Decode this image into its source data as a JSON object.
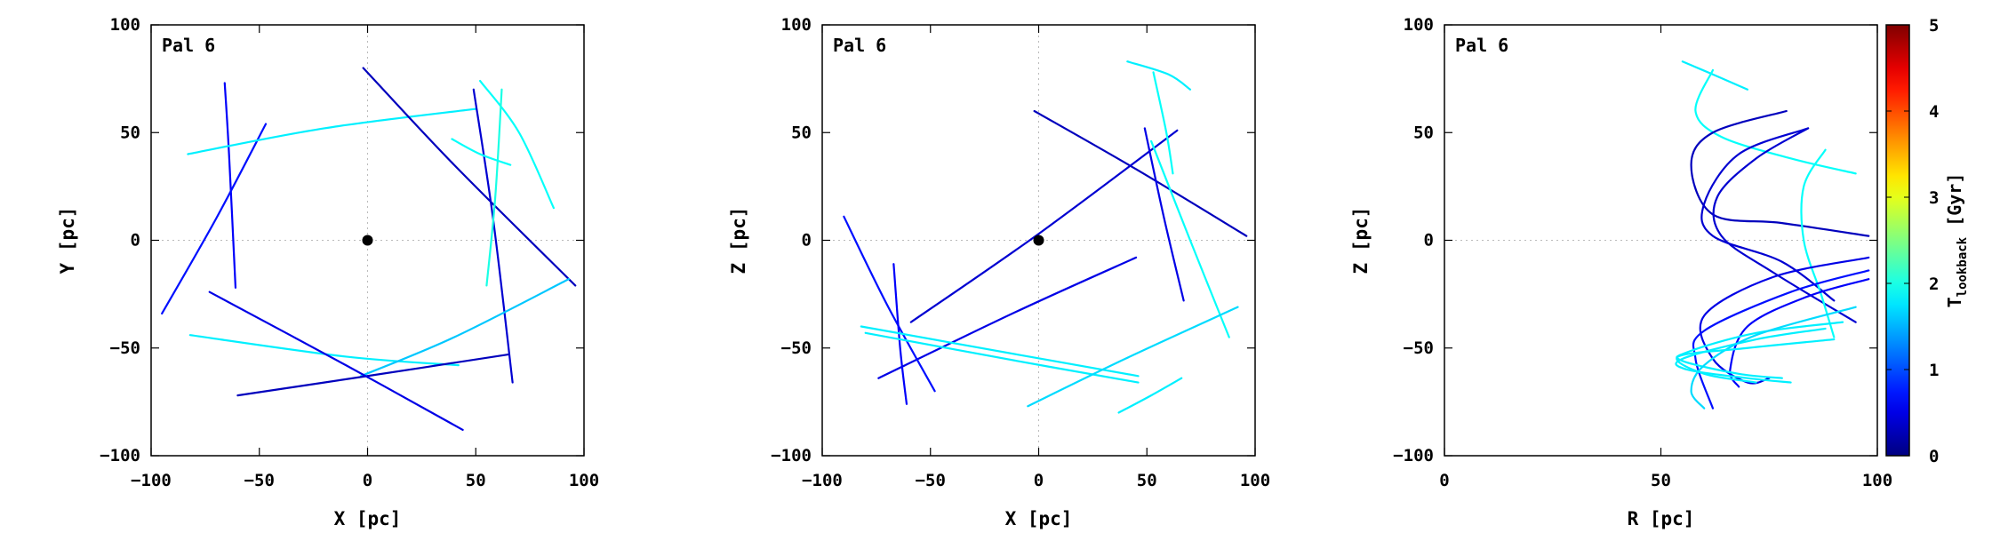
{
  "chart_data": [
    {
      "type": "line",
      "panel_label": "Pal 6",
      "xlabel": "X [pc]",
      "ylabel": "Y [pc]",
      "xlim": [
        -100,
        100
      ],
      "ylim": [
        -100,
        100
      ],
      "xticks": [
        -100,
        -50,
        0,
        50,
        100
      ],
      "yticks": [
        -100,
        -50,
        0,
        50,
        100
      ],
      "grid": true,
      "center_marker": {
        "x": 0,
        "y": 0
      },
      "series": [
        {
          "t": 0.6,
          "points": [
            [
              -66,
              73
            ],
            [
              -64,
              40
            ],
            [
              -61,
              -22
            ]
          ]
        },
        {
          "t": 0.7,
          "points": [
            [
              -47,
              54
            ],
            [
              -70,
              10
            ],
            [
              -95,
              -34
            ]
          ]
        },
        {
          "t": 1.8,
          "points": [
            [
              -83,
              40
            ],
            [
              -20,
              52
            ],
            [
              50,
              61
            ]
          ]
        },
        {
          "t": 0.3,
          "points": [
            [
              -2,
              80
            ],
            [
              40,
              35
            ],
            [
              96,
              -21
            ]
          ]
        },
        {
          "t": 0.4,
          "points": [
            [
              49,
              70
            ],
            [
              58,
              10
            ],
            [
              67,
              -66
            ]
          ]
        },
        {
          "t": 1.9,
          "points": [
            [
              52,
              74
            ],
            [
              70,
              50
            ],
            [
              86,
              15
            ]
          ]
        },
        {
          "t": 2.0,
          "points": [
            [
              62,
              70
            ],
            [
              59,
              20
            ],
            [
              55,
              -21
            ]
          ]
        },
        {
          "t": 1.9,
          "points": [
            [
              39,
              47
            ],
            [
              52,
              40
            ],
            [
              66,
              35
            ]
          ]
        },
        {
          "t": 1.8,
          "points": [
            [
              -82,
              -44
            ],
            [
              -10,
              -54
            ],
            [
              42,
              -58
            ]
          ]
        },
        {
          "t": 1.6,
          "points": [
            [
              -3,
              -63
            ],
            [
              40,
              -45
            ],
            [
              93,
              -18
            ]
          ]
        },
        {
          "t": 0.3,
          "points": [
            [
              -60,
              -72
            ],
            [
              0,
              -63
            ],
            [
              65,
              -53
            ]
          ]
        },
        {
          "t": 0.5,
          "points": [
            [
              -73,
              -24
            ],
            [
              -10,
              -58
            ],
            [
              44,
              -88
            ]
          ]
        }
      ]
    },
    {
      "type": "line",
      "panel_label": "Pal 6",
      "xlabel": "X [pc]",
      "ylabel": "Z [pc]",
      "xlim": [
        -100,
        100
      ],
      "ylim": [
        -100,
        100
      ],
      "xticks": [
        -100,
        -50,
        0,
        50,
        100
      ],
      "yticks": [
        -100,
        -50,
        0,
        50,
        100
      ],
      "grid": true,
      "center_marker": {
        "x": 0,
        "y": 0
      },
      "series": [
        {
          "t": 0.3,
          "points": [
            [
              -2,
              60
            ],
            [
              45,
              33
            ],
            [
              96,
              2
            ]
          ]
        },
        {
          "t": 0.4,
          "points": [
            [
              -59,
              -38
            ],
            [
              0,
              3
            ],
            [
              64,
              51
            ]
          ]
        },
        {
          "t": 0.5,
          "points": [
            [
              -74,
              -64
            ],
            [
              -10,
              -33
            ],
            [
              45,
              -8
            ]
          ]
        },
        {
          "t": 0.7,
          "points": [
            [
              -90,
              11
            ],
            [
              -70,
              -30
            ],
            [
              -48,
              -70
            ]
          ]
        },
        {
          "t": 0.6,
          "points": [
            [
              -67,
              -11
            ],
            [
              -64,
              -50
            ],
            [
              -61,
              -76
            ]
          ]
        },
        {
          "t": 0.5,
          "points": [
            [
              49,
              52
            ],
            [
              58,
              10
            ],
            [
              67,
              -28
            ]
          ]
        },
        {
          "t": 1.9,
          "points": [
            [
              53,
              78
            ],
            [
              59,
              50
            ],
            [
              62,
              31
            ]
          ]
        },
        {
          "t": 1.8,
          "points": [
            [
              41,
              83
            ],
            [
              60,
              77
            ],
            [
              70,
              70
            ]
          ]
        },
        {
          "t": 1.9,
          "points": [
            [
              52,
              46
            ],
            [
              70,
              0
            ],
            [
              88,
              -45
            ]
          ]
        },
        {
          "t": 1.8,
          "points": [
            [
              -82,
              -40
            ],
            [
              -10,
              -53
            ],
            [
              46,
              -63
            ]
          ]
        },
        {
          "t": 1.8,
          "points": [
            [
              -80,
              -43
            ],
            [
              -10,
              -56
            ],
            [
              46,
              -66
            ]
          ]
        },
        {
          "t": 1.7,
          "points": [
            [
              -5,
              -77
            ],
            [
              40,
              -55
            ],
            [
              92,
              -31
            ]
          ]
        },
        {
          "t": 1.8,
          "points": [
            [
              37,
              -80
            ],
            [
              52,
              -72
            ],
            [
              66,
              -64
            ]
          ]
        }
      ]
    },
    {
      "type": "line",
      "panel_label": "Pal 6",
      "xlabel": "R [pc]",
      "ylabel": "Z [pc]",
      "xlim": [
        0,
        100
      ],
      "ylim": [
        -100,
        100
      ],
      "xticks": [
        0,
        50,
        100
      ],
      "yticks": [
        -100,
        -50,
        0,
        50,
        100
      ],
      "grid": true,
      "colorbar": {
        "label": "T_lookback [Gyr]",
        "label_main": "T",
        "label_sub": "lookback",
        "label_unit": " [Gyr]",
        "min": 0,
        "max": 5,
        "ticks": [
          0,
          1,
          2,
          3,
          4,
          5
        ],
        "colormap": "jet"
      },
      "series": [
        {
          "t": 1.8,
          "points": [
            [
              55,
              83
            ],
            [
              62,
              77
            ],
            [
              70,
              70
            ]
          ]
        },
        {
          "t": 1.9,
          "points": [
            [
              62,
              79
            ],
            [
              58,
              60
            ],
            [
              64,
              48
            ],
            [
              80,
              38
            ],
            [
              95,
              31
            ]
          ]
        },
        {
          "t": 0.3,
          "points": [
            [
              79,
              60
            ],
            [
              62,
              50
            ],
            [
              57,
              35
            ],
            [
              62,
              12
            ],
            [
              78,
              8
            ],
            [
              98,
              2
            ]
          ]
        },
        {
          "t": 0.4,
          "points": [
            [
              84,
              52
            ],
            [
              68,
              40
            ],
            [
              60,
              17
            ],
            [
              62,
              2
            ],
            [
              78,
              -10
            ],
            [
              90,
              -28
            ]
          ]
        },
        {
          "t": 0.4,
          "points": [
            [
              84,
              52
            ],
            [
              72,
              38
            ],
            [
              63,
              20
            ],
            [
              64,
              2
            ],
            [
              76,
              -15
            ],
            [
              95,
              -38
            ]
          ]
        },
        {
          "t": 1.9,
          "points": [
            [
              88,
              42
            ],
            [
              83,
              25
            ],
            [
              83,
              0
            ],
            [
              87,
              -25
            ],
            [
              90,
              -45
            ]
          ]
        },
        {
          "t": 0.5,
          "points": [
            [
              98,
              -8
            ],
            [
              76,
              -17
            ],
            [
              60,
              -35
            ],
            [
              62,
              -55
            ],
            [
              70,
              -66
            ],
            [
              75,
              -64
            ]
          ]
        },
        {
          "t": 0.7,
          "points": [
            [
              98,
              -14
            ],
            [
              80,
              -24
            ],
            [
              60,
              -42
            ],
            [
              58,
              -55
            ],
            [
              62,
              -78
            ]
          ]
        },
        {
          "t": 0.6,
          "points": [
            [
              98,
              -18
            ],
            [
              84,
              -26
            ],
            [
              70,
              -40
            ],
            [
              66,
              -60
            ],
            [
              68,
              -68
            ]
          ]
        },
        {
          "t": 1.8,
          "points": [
            [
              92,
              -38
            ],
            [
              72,
              -43
            ],
            [
              56,
              -52
            ],
            [
              55,
              -56
            ],
            [
              68,
              -62
            ],
            [
              78,
              -64
            ]
          ]
        },
        {
          "t": 1.8,
          "points": [
            [
              88,
              -41
            ],
            [
              72,
              -46
            ],
            [
              55,
              -55
            ],
            [
              56,
              -60
            ],
            [
              70,
              -64
            ],
            [
              80,
              -66
            ]
          ]
        },
        {
          "t": 1.7,
          "points": [
            [
              95,
              -31
            ],
            [
              72,
              -44
            ],
            [
              60,
              -58
            ],
            [
              57,
              -70
            ],
            [
              60,
              -78
            ]
          ]
        },
        {
          "t": 1.8,
          "points": [
            [
              90,
              -46
            ],
            [
              70,
              -50
            ],
            [
              54,
              -54
            ],
            [
              60,
              -62
            ],
            [
              72,
              -66
            ]
          ]
        }
      ]
    }
  ]
}
